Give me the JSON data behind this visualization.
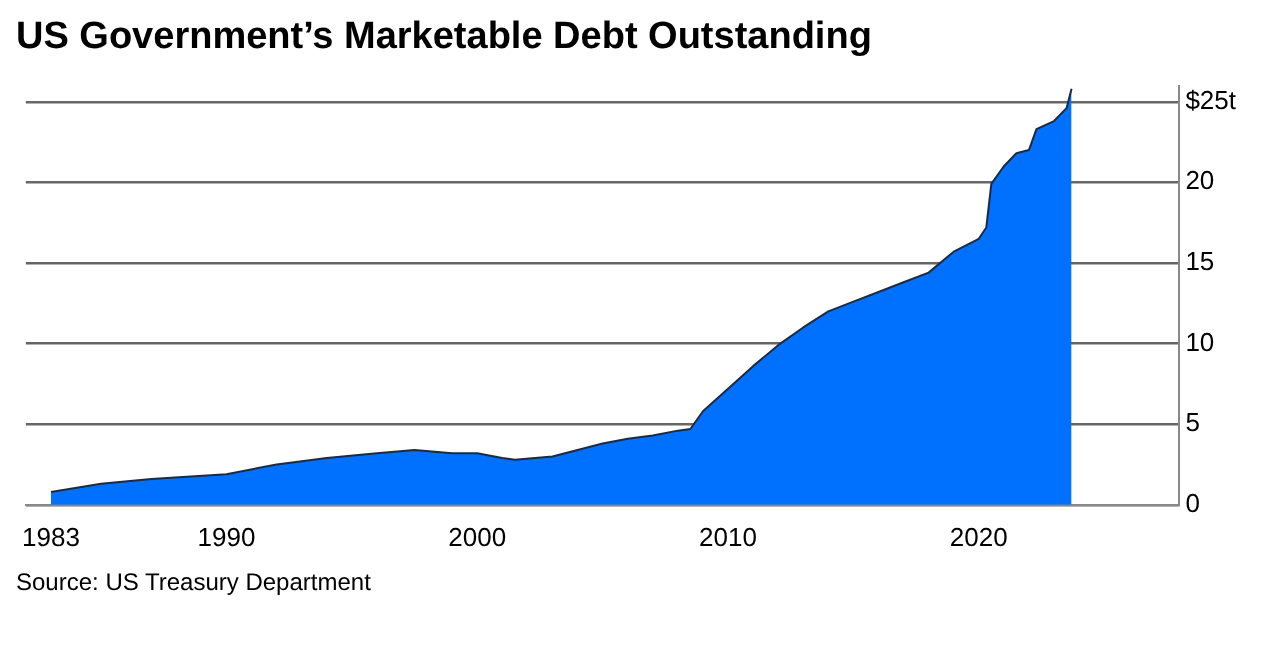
{
  "chart_data": {
    "type": "area",
    "title": "US Government’s Marketable Debt Outstanding",
    "annotations": [
      "Source: US Treasury Department"
    ],
    "x": [
      1983,
      1985,
      1987,
      1990,
      1992,
      1994,
      1996,
      1997.5,
      1999,
      2000,
      2001,
      2001.5,
      2003,
      2004,
      2005,
      2006,
      2007,
      2008,
      2008.5,
      2009,
      2010,
      2011,
      2012,
      2013,
      2014,
      2015,
      2016,
      2017,
      2018,
      2019,
      2020,
      2020.3,
      2020.5,
      2021,
      2021.5,
      2022,
      2022.3,
      2023,
      2023.5,
      2023.7
    ],
    "series": [
      {
        "color": "#0070ff",
        "values": [
          0.8,
          1.3,
          1.6,
          1.9,
          2.5,
          2.9,
          3.2,
          3.4,
          3.2,
          3.2,
          2.9,
          2.8,
          3.0,
          3.4,
          3.8,
          4.1,
          4.3,
          4.6,
          4.7,
          5.8,
          7.2,
          8.6,
          9.9,
          11.0,
          12.0,
          12.6,
          13.2,
          13.8,
          14.4,
          15.7,
          16.5,
          17.2,
          19.9,
          21.0,
          21.8,
          22.0,
          23.3,
          23.8,
          24.6,
          25.8
        ]
      }
    ],
    "xlim": [
      1982,
      2028
    ],
    "xticks": [
      1983,
      1990,
      2000,
      2010,
      2020
    ],
    "ylim": [
      0,
      26
    ],
    "yticks": [
      0,
      5,
      10,
      15,
      20,
      {
        "value": 25,
        "label": "$25t"
      }
    ],
    "grid": "y",
    "legend": false
  }
}
